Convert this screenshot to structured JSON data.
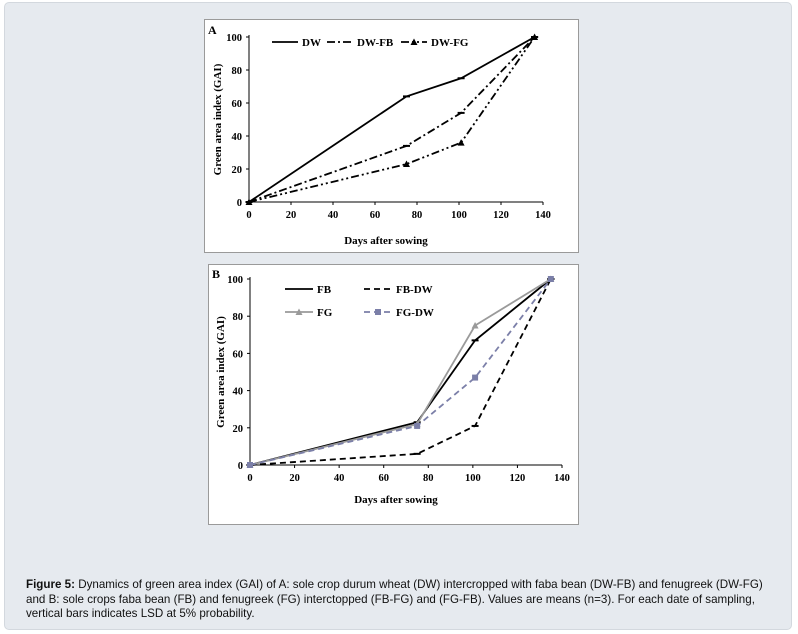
{
  "caption": {
    "label": "Figure 5:",
    "text": "Dynamics of green area index (GAI) of A: sole crop durum wheat (DW) intercropped with faba bean (DW-FB) and fenugreek (DW-FG) and B: sole crops  faba bean (FB) and fenugreek (FG) interctopped (FB-FG) and (FG-FB). Values are means (n=3). For each date of sampling, vertical bars indicates LSD at 5% probability."
  },
  "chart_data": [
    {
      "panel": "A",
      "type": "line",
      "xlabel": "Days after sowing",
      "ylabel": "Green area index (GAI)",
      "xlim": [
        0,
        140
      ],
      "ylim": [
        0,
        100
      ],
      "xticks": [
        "0",
        "20",
        "40",
        "60",
        "80",
        "100",
        "120",
        "140"
      ],
      "yticks": [
        "0",
        "20",
        "40",
        "60",
        "80",
        "100"
      ],
      "legend_position": "top",
      "series": [
        {
          "name": "DW",
          "x": [
            0,
            75,
            101,
            136
          ],
          "values": [
            0,
            64,
            75,
            100
          ],
          "color": "#000000",
          "style": "solid",
          "marker": "dash"
        },
        {
          "name": "DW-FB",
          "x": [
            0,
            75,
            101,
            136
          ],
          "values": [
            0,
            34,
            54,
            100
          ],
          "color": "#000000",
          "style": "dashdot",
          "marker": "dash"
        },
        {
          "name": "DW-FG",
          "x": [
            0,
            75,
            101,
            136
          ],
          "values": [
            0,
            23,
            36,
            100
          ],
          "color": "#000000",
          "style": "dashdotdot",
          "marker": "triangle"
        }
      ]
    },
    {
      "panel": "B",
      "type": "line",
      "xlabel": "Days after sowing",
      "ylabel": "Green area index (GAI)",
      "xlim": [
        0,
        140
      ],
      "ylim": [
        0,
        100
      ],
      "xticks": [
        "0",
        "20",
        "40",
        "60",
        "80",
        "100",
        "120",
        "140"
      ],
      "yticks": [
        "0",
        "20",
        "40",
        "60",
        "80",
        "100"
      ],
      "legend_position": "top",
      "series": [
        {
          "name": "FB",
          "x": [
            0,
            75,
            101,
            135
          ],
          "values": [
            0,
            23,
            67,
            100
          ],
          "color": "#000000",
          "style": "solid",
          "marker": "dash"
        },
        {
          "name": "FB-DW",
          "x": [
            0,
            75,
            101,
            135
          ],
          "values": [
            0,
            6,
            21,
            100
          ],
          "color": "#000000",
          "style": "dashed",
          "marker": "dash"
        },
        {
          "name": "FG",
          "x": [
            0,
            75,
            101,
            135
          ],
          "values": [
            0,
            22,
            75,
            100
          ],
          "color": "#9a9a9a",
          "style": "solid",
          "marker": "triangle"
        },
        {
          "name": "FG-DW",
          "x": [
            0,
            75,
            101,
            135
          ],
          "values": [
            0,
            21,
            47,
            100
          ],
          "color": "#7b7fa8",
          "style": "dashed",
          "marker": "square"
        }
      ]
    }
  ]
}
